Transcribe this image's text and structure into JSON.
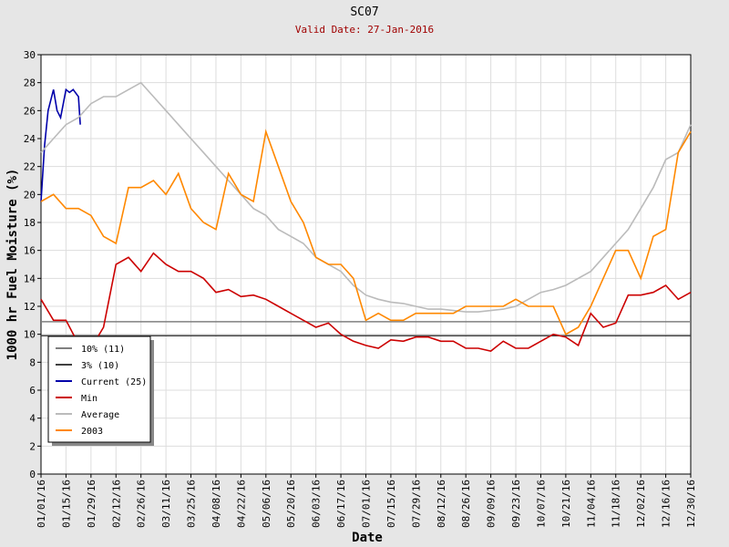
{
  "chart_data": {
    "type": "line",
    "title": "SC07",
    "subtitle": "Valid Date: 27-Jan-2016",
    "xlabel": "Date",
    "ylabel": "1000 hr Fuel Moisture (%)",
    "xlim": [
      "01/01/16",
      "12/30/16"
    ],
    "xticks": [
      "01/01/16",
      "01/15/16",
      "01/29/16",
      "02/12/16",
      "02/26/16",
      "03/11/16",
      "03/25/16",
      "04/08/16",
      "04/22/16",
      "05/06/16",
      "05/20/16",
      "06/03/16",
      "06/17/16",
      "07/01/16",
      "07/15/16",
      "07/29/16",
      "08/12/16",
      "08/26/16",
      "09/09/16",
      "09/23/16",
      "10/07/16",
      "10/21/16",
      "11/04/16",
      "11/18/16",
      "12/02/16",
      "12/16/16",
      "12/30/16"
    ],
    "ylim": [
      0,
      30
    ],
    "yticks": [
      0,
      2,
      4,
      6,
      8,
      10,
      12,
      14,
      16,
      18,
      20,
      22,
      24,
      26,
      28,
      30
    ],
    "grid": true,
    "legend": "lower-left",
    "weeks": [
      "01/01/16",
      "01/08/16",
      "01/15/16",
      "01/22/16",
      "01/29/16",
      "02/05/16",
      "02/12/16",
      "02/19/16",
      "02/26/16",
      "03/04/16",
      "03/11/16",
      "03/18/16",
      "03/25/16",
      "04/01/16",
      "04/08/16",
      "04/15/16",
      "04/22/16",
      "04/29/16",
      "05/06/16",
      "05/13/16",
      "05/20/16",
      "05/27/16",
      "06/03/16",
      "06/10/16",
      "06/17/16",
      "06/24/16",
      "07/01/16",
      "07/08/16",
      "07/15/16",
      "07/22/16",
      "07/29/16",
      "08/05/16",
      "08/12/16",
      "08/19/16",
      "08/26/16",
      "09/02/16",
      "09/09/16",
      "09/16/16",
      "09/23/16",
      "09/30/16",
      "10/07/16",
      "10/14/16",
      "10/21/16",
      "10/28/16",
      "11/04/16",
      "11/11/16",
      "11/18/16",
      "11/25/16",
      "12/02/16",
      "12/09/16",
      "12/16/16",
      "12/23/16",
      "12/30/16"
    ],
    "series": [
      {
        "name": "10% (11)",
        "color": "#808080",
        "x": [
          "01/01/16",
          "12/30/16"
        ],
        "values": [
          10.9,
          10.9
        ]
      },
      {
        "name": "3% (10)",
        "color": "#404040",
        "x": [
          "01/01/16",
          "12/30/16"
        ],
        "values": [
          9.9,
          9.9
        ]
      },
      {
        "name": "Current (25)",
        "color": "#0000aa",
        "x": [
          "01/01/16",
          "01/03/16",
          "01/05/16",
          "01/08/16",
          "01/10/16",
          "01/12/16",
          "01/15/16",
          "01/17/16",
          "01/19/16",
          "01/22/16",
          "01/23/16"
        ],
        "values": [
          19.5,
          23.5,
          26,
          27.5,
          26,
          25.5,
          27.5,
          27.3,
          27.5,
          27,
          25
        ]
      },
      {
        "name": "Min",
        "color": "#cc0000",
        "values": [
          12.5,
          11,
          11,
          9.3,
          9,
          10.5,
          15,
          15.5,
          14.5,
          15.8,
          15,
          14.5,
          14.5,
          14,
          13,
          13.2,
          12.7,
          12.8,
          12.5,
          12,
          11.5,
          11,
          10.5,
          10.8,
          10,
          9.5,
          9.2,
          9,
          9.6,
          9.5,
          9.8,
          9.8,
          9.5,
          9.5,
          9,
          9,
          8.8,
          9.5,
          9,
          9,
          9.5,
          10,
          9.8,
          9.2,
          11.5,
          10.5,
          10.8,
          12.8,
          12.8,
          13,
          13.5,
          12.5,
          13
        ]
      },
      {
        "name": "Average",
        "color": "#bbbbbb",
        "values": [
          23,
          24,
          25,
          25.5,
          26.5,
          27,
          27,
          27.5,
          28,
          27,
          26,
          25,
          24,
          23,
          22,
          21,
          20,
          19,
          18.5,
          17.5,
          17,
          16.5,
          15.5,
          15,
          14.5,
          13.5,
          12.8,
          12.5,
          12.3,
          12.2,
          12,
          11.8,
          11.8,
          11.7,
          11.6,
          11.6,
          11.7,
          11.8,
          12,
          12.5,
          13,
          13.2,
          13.5,
          14,
          14.5,
          15.5,
          16.5,
          17.5,
          19,
          20.5,
          22.5,
          23,
          25
        ]
      },
      {
        "name": "2003",
        "color": "#ff8800",
        "values": [
          19.5,
          20,
          19,
          19,
          18.5,
          17,
          16.5,
          20.5,
          20.5,
          21,
          20,
          21.5,
          19,
          18,
          17.5,
          21.5,
          20,
          19.5,
          24.5,
          22,
          19.5,
          18,
          15.5,
          15,
          15,
          14,
          11,
          11.5,
          11,
          11,
          11.5,
          11.5,
          11.5,
          11.5,
          12,
          12,
          12,
          12,
          12.5,
          12,
          12,
          12,
          10,
          10.5,
          12,
          14,
          16,
          16,
          14,
          17,
          17.5,
          23,
          24.5
        ]
      }
    ]
  }
}
